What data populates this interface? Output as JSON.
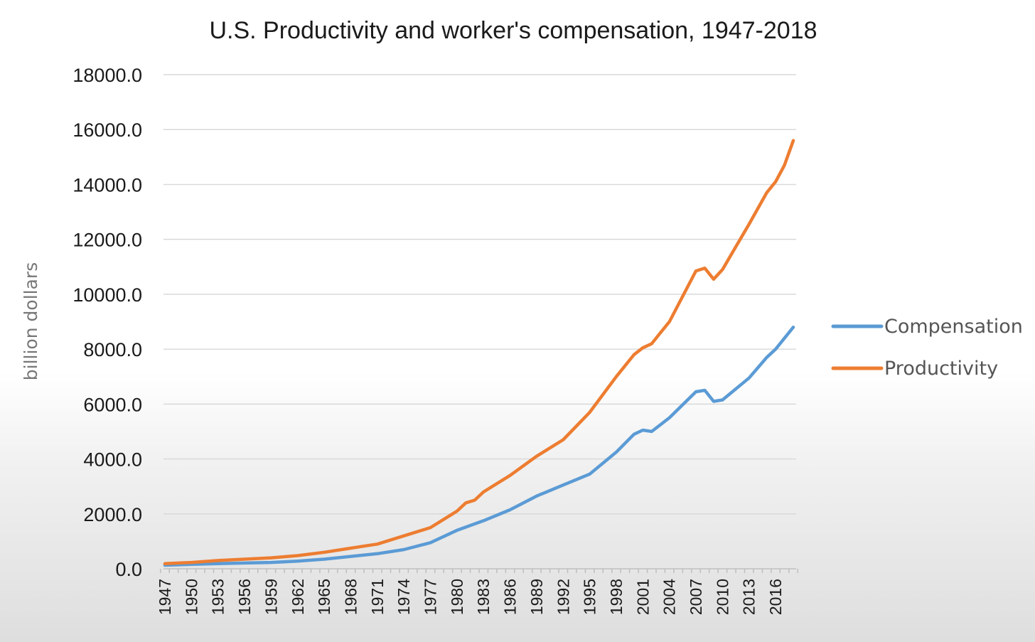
{
  "chart_data": {
    "type": "line",
    "title": "U.S. Productivity and worker's compensation, 1947-2018",
    "ylabel": "billion dollars",
    "xlabel": "",
    "ylim": [
      0,
      18000
    ],
    "yticks": [
      0,
      2000,
      4000,
      6000,
      8000,
      10000,
      12000,
      14000,
      16000,
      18000
    ],
    "ytick_labels": [
      "0.0",
      "2000.0",
      "4000.0",
      "6000.0",
      "8000.0",
      "10000.0",
      "12000.0",
      "14000.0",
      "16000.0",
      "18000.0"
    ],
    "x_start": 1947,
    "x_end": 2018,
    "xtick_labels": [
      "1947",
      "1950",
      "1953",
      "1956",
      "1959",
      "1962",
      "1965",
      "1968",
      "1971",
      "1974",
      "1977",
      "1980",
      "1983",
      "1986",
      "1989",
      "1992",
      "1995",
      "1998",
      "2001",
      "2004",
      "2007",
      "2010",
      "2013",
      "2016"
    ],
    "grid": true,
    "legend_position": "right",
    "series": [
      {
        "name": "Compensation",
        "color": "#5b9bd5",
        "years": [
          1947,
          1950,
          1953,
          1956,
          1959,
          1962,
          1965,
          1968,
          1971,
          1974,
          1977,
          1980,
          1983,
          1986,
          1989,
          1992,
          1995,
          1998,
          2000,
          2001,
          2002,
          2004,
          2007,
          2008,
          2009,
          2010,
          2013,
          2015,
          2016,
          2018
        ],
        "values": [
          130,
          160,
          190,
          210,
          230,
          280,
          350,
          450,
          550,
          700,
          950,
          1400,
          1750,
          2150,
          2650,
          3050,
          3450,
          4250,
          4900,
          5050,
          5000,
          5500,
          6450,
          6500,
          6100,
          6150,
          6950,
          7700,
          8000,
          8800
        ]
      },
      {
        "name": "Productivity",
        "color": "#ed7d31",
        "years": [
          1947,
          1950,
          1953,
          1956,
          1959,
          1962,
          1965,
          1968,
          1971,
          1974,
          1977,
          1980,
          1981,
          1982,
          1983,
          1986,
          1989,
          1992,
          1995,
          1998,
          2000,
          2001,
          2002,
          2003,
          2004,
          2007,
          2008,
          2009,
          2010,
          2011,
          2013,
          2015,
          2016,
          2017,
          2018
        ],
        "values": [
          190,
          230,
          300,
          350,
          400,
          480,
          600,
          750,
          900,
          1200,
          1500,
          2100,
          2400,
          2500,
          2800,
          3400,
          4100,
          4700,
          5700,
          7000,
          7800,
          8050,
          8200,
          8600,
          9000,
          10850,
          10950,
          10550,
          10900,
          11450,
          12550,
          13700,
          14100,
          14700,
          15600
        ]
      }
    ]
  }
}
